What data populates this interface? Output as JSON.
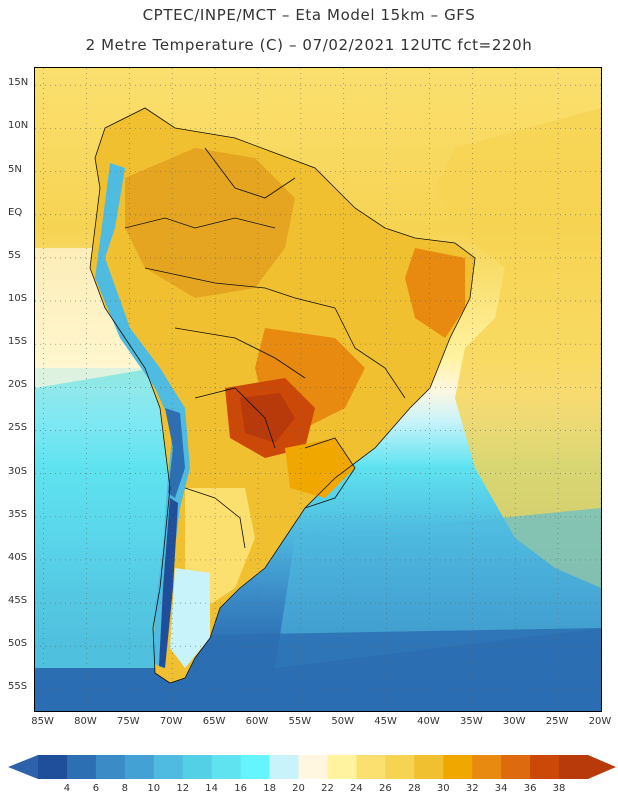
{
  "header": {
    "line1": "CPTEC/INPE/MCT –  Eta Model 15km – GFS",
    "line2": "2 Metre Temperature (C) – 07/02/2021 12UTC fct=220h"
  },
  "map": {
    "lat_labels": [
      "15N",
      "10N",
      "5N",
      "EQ",
      "5S",
      "10S",
      "15S",
      "20S",
      "25S",
      "30S",
      "35S",
      "40S",
      "45S",
      "50S",
      "55S"
    ],
    "lon_labels": [
      "85W",
      "80W",
      "75W",
      "70W",
      "65W",
      "60W",
      "55W",
      "50W",
      "45W",
      "40W",
      "35W",
      "30W",
      "25W",
      "20W"
    ],
    "lon_range": [
      -86,
      -20
    ],
    "lat_range": [
      -57.5,
      17
    ],
    "grid": "dotted"
  },
  "colorbar": {
    "levels": [
      "4",
      "6",
      "8",
      "10",
      "12",
      "14",
      "16",
      "18",
      "20",
      "22",
      "24",
      "26",
      "28",
      "30",
      "32",
      "34",
      "36",
      "38"
    ],
    "colors": [
      "#1f4e9a",
      "#2c6fb3",
      "#3b8bc7",
      "#43a2d3",
      "#4fbbe0",
      "#53cfe6",
      "#5fe3f0",
      "#66f5ff",
      "#c8f3fb",
      "#fff7e0",
      "#fff3a0",
      "#fbe070",
      "#f6d352",
      "#f0c030",
      "#f0a800",
      "#e88a10",
      "#de6a10",
      "#cc4808",
      "#b83a0a"
    ],
    "ends": {
      "low": "#2d62aa",
      "high": "#b83a0a"
    }
  }
}
